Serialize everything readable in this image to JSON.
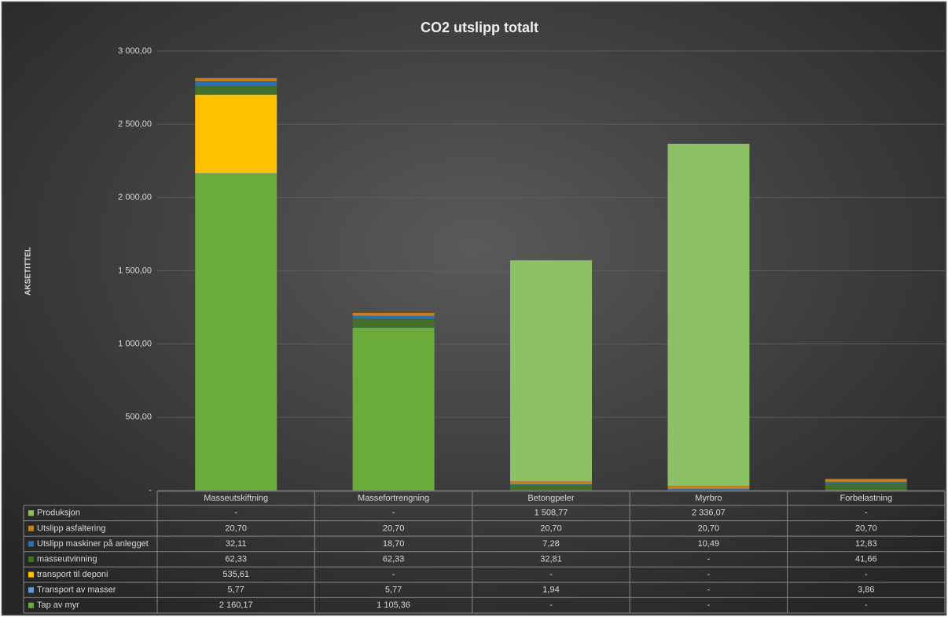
{
  "chart_data": {
    "type": "stacked_bar",
    "title": "CO2 utslipp totalt",
    "y_axis_label": "AKSETITTEL",
    "categories": [
      "Masseutskiftning",
      "Massefortrengning",
      "Betongpeler",
      "Myrbro",
      "Forbelastning"
    ],
    "series": [
      {
        "name": "Produksjon",
        "color": "#8cc265",
        "values": [
          0,
          0,
          1508.77,
          2336.07,
          0
        ],
        "value_labels": [
          "-",
          "-",
          "1 508,77",
          "2 336,07",
          "-"
        ]
      },
      {
        "name": "Utslipp asfaltering",
        "color": "#c27f1c",
        "values": [
          20.7,
          20.7,
          20.7,
          20.7,
          20.7
        ],
        "value_labels": [
          "20,70",
          "20,70",
          "20,70",
          "20,70",
          "20,70"
        ]
      },
      {
        "name": "Utslipp maskiner på anlegget",
        "color": "#2f6ea8",
        "values": [
          32.11,
          18.7,
          7.28,
          10.49,
          12.83
        ],
        "value_labels": [
          "32,11",
          "18,70",
          "7,28",
          "10,49",
          "12,83"
        ]
      },
      {
        "name": "masseutvinning",
        "color": "#436f2c",
        "values": [
          62.33,
          62.33,
          32.81,
          0,
          41.66
        ],
        "value_labels": [
          "62,33",
          "62,33",
          "32,81",
          "-",
          "41,66"
        ]
      },
      {
        "name": "transport til deponi",
        "color": "#ffc000",
        "values": [
          535.61,
          0,
          0,
          0,
          0
        ],
        "value_labels": [
          "535,61",
          "-",
          "-",
          "-",
          "-"
        ]
      },
      {
        "name": "Transport av masser",
        "color": "#5b9bd5",
        "values": [
          5.77,
          5.77,
          1.94,
          0,
          3.86
        ],
        "value_labels": [
          "5,77",
          "5,77",
          "1,94",
          "-",
          "3,86"
        ]
      },
      {
        "name": "Tap av myr",
        "color": "#6aab3c",
        "values": [
          2160.17,
          1105.36,
          0,
          0,
          0
        ],
        "value_labels": [
          "2 160,17",
          "1 105,36",
          "-",
          "-",
          "-"
        ]
      }
    ],
    "ylim": [
      0,
      3000
    ],
    "yticks": [
      {
        "value": 0,
        "label": "-"
      },
      {
        "value": 500,
        "label": "500,00"
      },
      {
        "value": 1000,
        "label": "1 000,00"
      },
      {
        "value": 1500,
        "label": "1 500,00"
      },
      {
        "value": 2000,
        "label": "2 000,00"
      },
      {
        "value": 2500,
        "label": "2 500,00"
      },
      {
        "value": 3000,
        "label": "3 000,00"
      }
    ],
    "grid": true
  }
}
